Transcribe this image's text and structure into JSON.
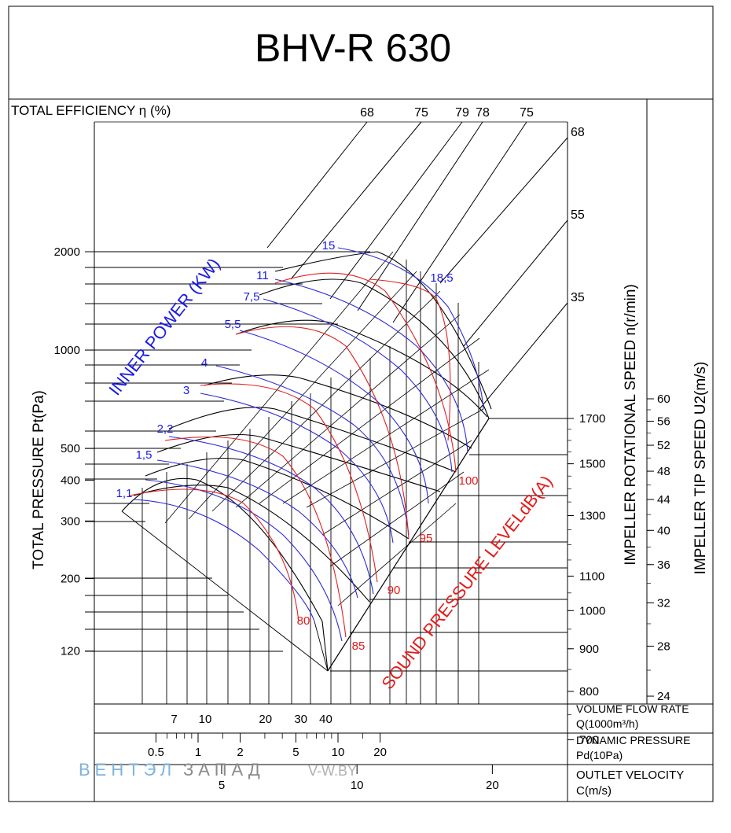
{
  "chart_data": {
    "type": "line",
    "title": "BHV-R 630",
    "efficiency": {
      "label": "TOTAL EFFICIENCY η (%)",
      "top_values": [
        "68",
        "75",
        "79",
        "78",
        "75"
      ],
      "side_values": [
        "68",
        "55",
        "35"
      ]
    },
    "y_axis": {
      "label": "TOTAL PRESSURE Pt(Pa)",
      "ticks": [
        2000,
        1000,
        500,
        400,
        300,
        200,
        120
      ],
      "tick_labels": [
        "2000",
        "1000",
        "500",
        "400",
        "300",
        "200",
        "120"
      ]
    },
    "speed_axis": {
      "label": "IMPELLER ROTATIONAL SPEED n(r/min)",
      "ticks": [
        1700,
        1500,
        1300,
        1100,
        1000,
        900,
        800,
        700
      ],
      "tick_labels": [
        "1700",
        "1500",
        "1300",
        "1100",
        "1000",
        "900",
        "800",
        "700"
      ]
    },
    "tip_speed_axis": {
      "label": "IMPELLER TIP SPEED U2(m/s)",
      "ticks": [
        60,
        56,
        52,
        48,
        44,
        40,
        36,
        32,
        28,
        24
      ],
      "tick_labels": [
        "60",
        "56",
        "52",
        "48",
        "44",
        "40",
        "36",
        "32",
        "28",
        "24"
      ]
    },
    "power": {
      "label": "INNER POWER (KW)",
      "values": [
        "15",
        "11",
        "18,5",
        "7,5",
        "5,5",
        "4",
        "3",
        "2,2",
        "1,5",
        "1,1"
      ]
    },
    "sound": {
      "label": "SOUND PRESSURE LEVELdB(A)",
      "values": [
        "100",
        "95",
        "90",
        "85",
        "80"
      ]
    },
    "flow_axis": {
      "label_line1": "VOLUME FLOW RATE",
      "label_line2": "Q(1000m³/h)",
      "ticks": [
        7,
        10,
        20,
        30,
        40
      ],
      "tick_labels": [
        "7",
        "10",
        "20",
        "30",
        "40"
      ]
    },
    "dynamic_pressure_axis": {
      "label_line1": "DYNAMIC PRESSURE",
      "label_line2": "Pd(10Pa)",
      "ticks": [
        0.5,
        1,
        2,
        5,
        10,
        20
      ],
      "tick_labels": [
        "0.5",
        "1",
        "2",
        "5",
        "10",
        "20"
      ]
    },
    "velocity_axis": {
      "label_line1": "OUTLET VELOCITY",
      "label_line2": "C(m/s)",
      "ticks": [
        5,
        10,
        20
      ],
      "tick_labels": [
        "5",
        "10",
        "20"
      ]
    }
  },
  "watermark": {
    "brand_left": "ВЕНТЭЛ",
    "brand_right": "ЗАПАД",
    "site": "V-W.BY"
  }
}
